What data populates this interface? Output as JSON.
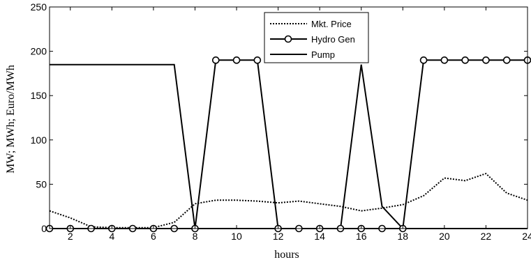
{
  "chart_data": {
    "type": "line",
    "xlabel": "hours",
    "ylabel": "MW; MWh; Euro/MWh",
    "xlim": [
      1,
      24
    ],
    "ylim": [
      0,
      250
    ],
    "xticks": [
      2,
      4,
      6,
      8,
      10,
      12,
      14,
      16,
      18,
      20,
      22,
      24
    ],
    "yticks": [
      0,
      50,
      100,
      150,
      200,
      250
    ],
    "grid": false,
    "legend_position": "top-center",
    "series": [
      {
        "name": "Mkt. Price",
        "style": "dotted",
        "marker": "none",
        "x": [
          1,
          2,
          3,
          4,
          5,
          6,
          7,
          8,
          9,
          10,
          11,
          12,
          13,
          14,
          15,
          16,
          17,
          18,
          19,
          20,
          21,
          22,
          23,
          24
        ],
        "values": [
          20,
          12,
          2,
          1,
          1,
          1,
          7,
          28,
          32,
          32,
          31,
          29,
          31,
          28,
          25,
          20,
          23,
          27,
          37,
          57,
          54,
          62,
          40,
          32
        ]
      },
      {
        "name": "Hydro Gen",
        "style": "solid",
        "marker": "circle",
        "x": [
          1,
          2,
          3,
          4,
          5,
          6,
          7,
          8,
          9,
          10,
          11,
          12,
          13,
          14,
          15,
          16,
          17,
          18,
          19,
          20,
          21,
          22,
          23,
          24
        ],
        "values": [
          0,
          0,
          0,
          0,
          0,
          0,
          0,
          0,
          190,
          190,
          190,
          0,
          0,
          0,
          0,
          0,
          0,
          0,
          190,
          190,
          190,
          190,
          190,
          190
        ]
      },
      {
        "name": "Pump",
        "style": "solid",
        "marker": "none",
        "x": [
          1,
          2,
          3,
          4,
          5,
          6,
          7,
          8,
          9,
          10,
          11,
          12,
          13,
          14,
          15,
          16,
          17,
          18,
          19,
          20,
          21,
          22,
          23,
          24
        ],
        "values": [
          185,
          185,
          185,
          185,
          185,
          185,
          185,
          0,
          0,
          0,
          0,
          0,
          0,
          0,
          0,
          185,
          25,
          0,
          0,
          0,
          0,
          0,
          0,
          0
        ]
      }
    ]
  }
}
